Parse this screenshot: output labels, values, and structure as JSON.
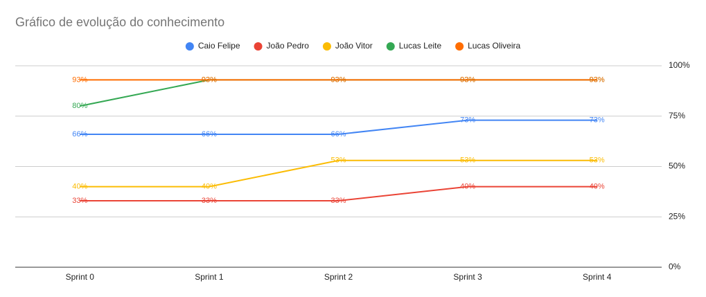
{
  "chart_data": {
    "type": "line",
    "title": "Gráfico de evolução do conhecimento",
    "categories": [
      "Sprint 0",
      "Sprint 1",
      "Sprint 2",
      "Sprint 3",
      "Sprint 4"
    ],
    "series": [
      {
        "name": "Caio Felipe",
        "color": "#4285f4",
        "values": [
          66,
          66,
          66,
          73,
          73
        ],
        "value_labels": [
          "66%",
          "66%",
          "66%",
          "73%",
          "73%"
        ]
      },
      {
        "name": "João Pedro",
        "color": "#ea4335",
        "values": [
          33,
          33,
          33,
          40,
          40
        ],
        "value_labels": [
          "33%",
          "33%",
          "33%",
          "40%",
          "40%"
        ]
      },
      {
        "name": "João Vitor",
        "color": "#fbbc04",
        "values": [
          40,
          40,
          53,
          53,
          53
        ],
        "value_labels": [
          "40%",
          "40%",
          "53%",
          "53%",
          "53%"
        ]
      },
      {
        "name": "Lucas Leite",
        "color": "#34a853",
        "values": [
          80,
          93,
          93,
          93,
          93
        ],
        "value_labels": [
          "80%",
          "93%",
          "93%",
          "93%",
          "93%"
        ]
      },
      {
        "name": "Lucas Oliveira",
        "color": "#ff6d01",
        "values": [
          93,
          93,
          93,
          93,
          93
        ],
        "value_labels": [
          "93%",
          "93%",
          "93%",
          "93%",
          "93%"
        ]
      }
    ],
    "ylim": [
      0,
      100
    ],
    "yticks": [
      {
        "value": 0,
        "label": "0%"
      },
      {
        "value": 25,
        "label": "25%"
      },
      {
        "value": 50,
        "label": "50%"
      },
      {
        "value": 75,
        "label": "75%"
      },
      {
        "value": 100,
        "label": "100%"
      }
    ],
    "grid": true,
    "legend": "top"
  }
}
